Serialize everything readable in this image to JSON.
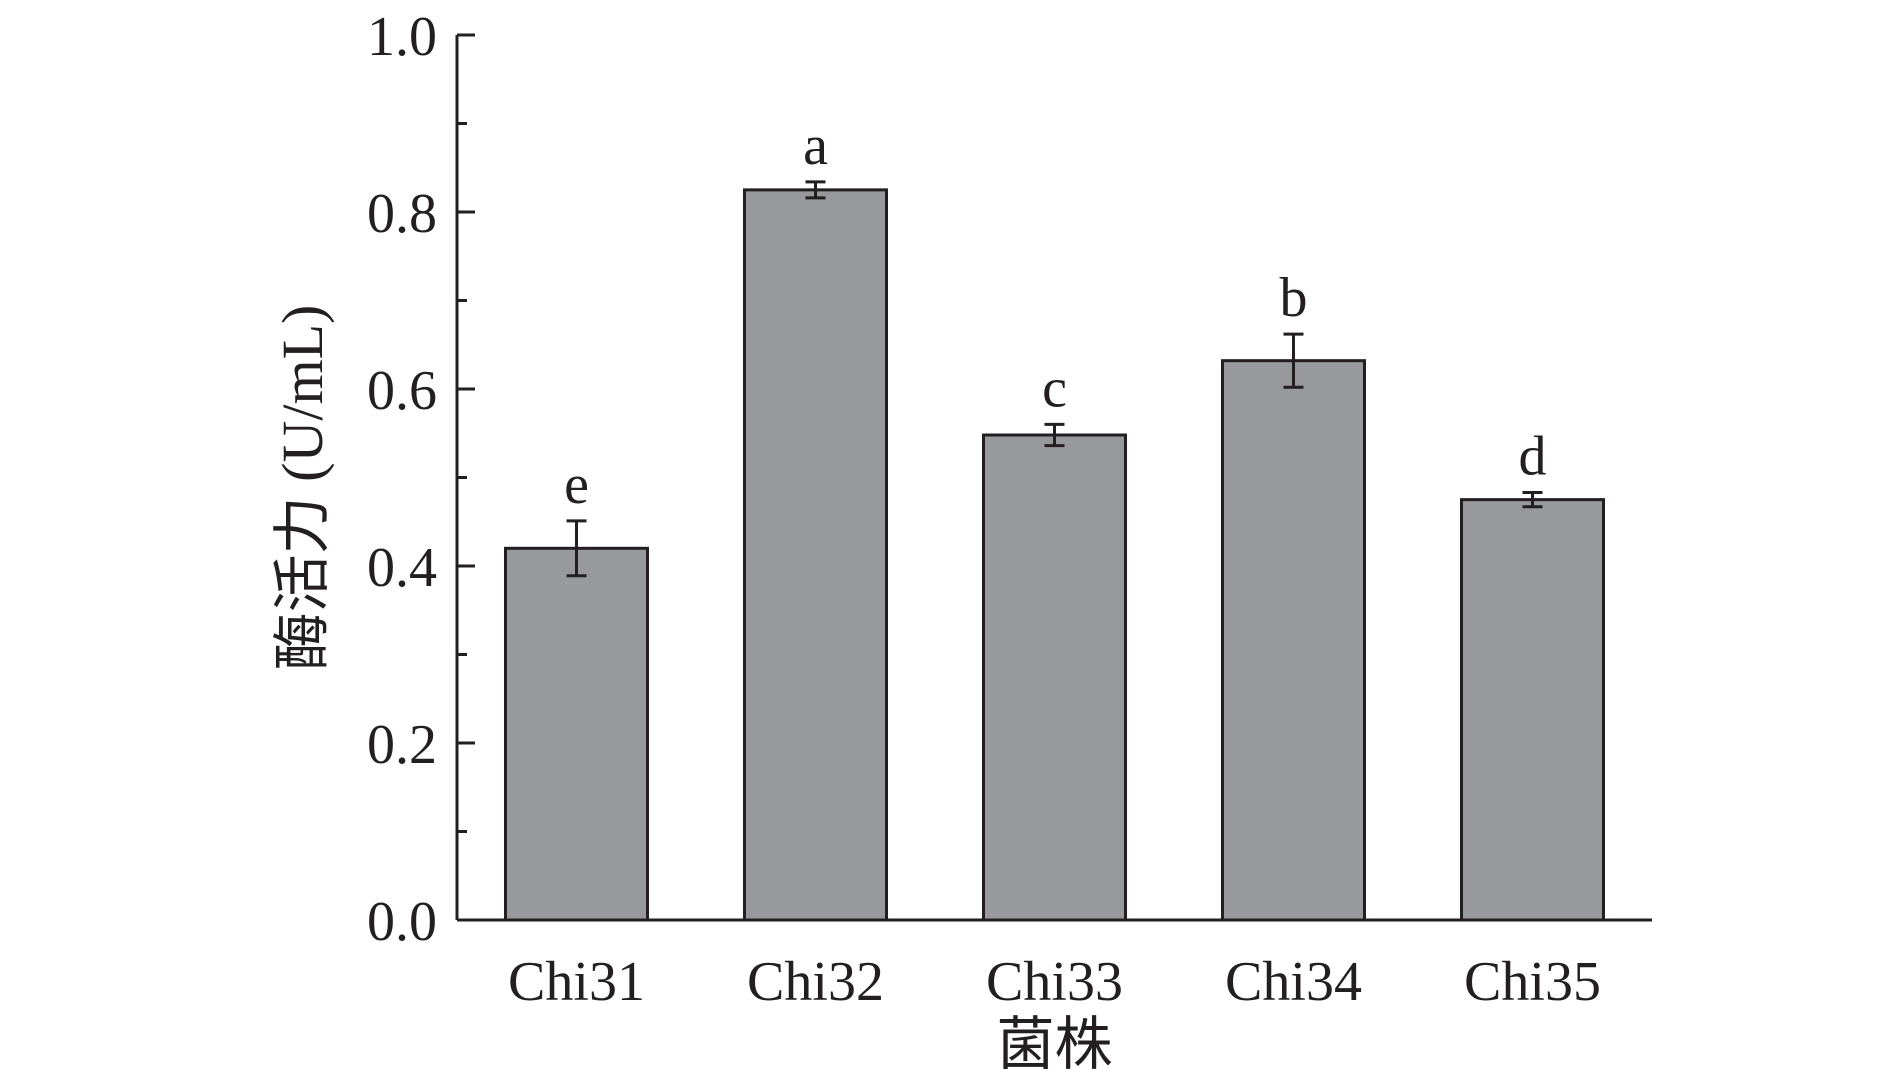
{
  "chart_data": {
    "type": "bar",
    "categories": [
      "Chi31",
      "Chi32",
      "Chi33",
      "Chi34",
      "Chi35"
    ],
    "values": [
      0.42,
      0.825,
      0.548,
      0.632,
      0.475
    ],
    "errors": [
      0.031,
      0.009,
      0.012,
      0.03,
      0.008
    ],
    "significance": [
      "e",
      "a",
      "c",
      "b",
      "d"
    ],
    "xlabel": "菌株",
    "ylabel": "酶活力 (U/mL)",
    "ylim": [
      0,
      1.0
    ],
    "yticks": [
      "0.0",
      "0.2",
      "0.4",
      "0.6",
      "0.8",
      "1.0"
    ],
    "bar_color": "#98999c",
    "edge_color": "#231f20",
    "grid": false,
    "legend": "none"
  }
}
